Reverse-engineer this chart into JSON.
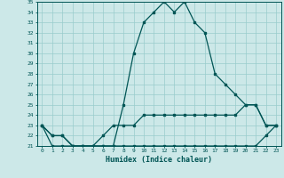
{
  "xlabel": "Humidex (Indice chaleur)",
  "bg_color": "#cce8e8",
  "grid_color": "#99cccc",
  "line_color": "#005555",
  "hours": [
    0,
    1,
    2,
    3,
    4,
    5,
    6,
    7,
    8,
    9,
    10,
    11,
    12,
    13,
    14,
    15,
    16,
    17,
    18,
    19,
    20,
    21,
    22,
    23
  ],
  "line_max": [
    23,
    22,
    22,
    21,
    21,
    21,
    21,
    21,
    25,
    30,
    33,
    34,
    35,
    34,
    35,
    33,
    32,
    28,
    27,
    26,
    25,
    25,
    23,
    23
  ],
  "line_mean": [
    23,
    22,
    22,
    21,
    21,
    21,
    22,
    23,
    23,
    23,
    24,
    24,
    24,
    24,
    24,
    24,
    24,
    24,
    24,
    24,
    25,
    25,
    23,
    23
  ],
  "line_min": [
    23,
    21,
    21,
    21,
    21,
    21,
    21,
    21,
    21,
    21,
    21,
    21,
    21,
    21,
    21,
    21,
    21,
    21,
    21,
    21,
    21,
    21,
    22,
    23
  ],
  "ylim_min": 21,
  "ylim_max": 35,
  "yticks": [
    21,
    22,
    23,
    24,
    25,
    26,
    27,
    28,
    29,
    30,
    31,
    32,
    33,
    34,
    35
  ]
}
